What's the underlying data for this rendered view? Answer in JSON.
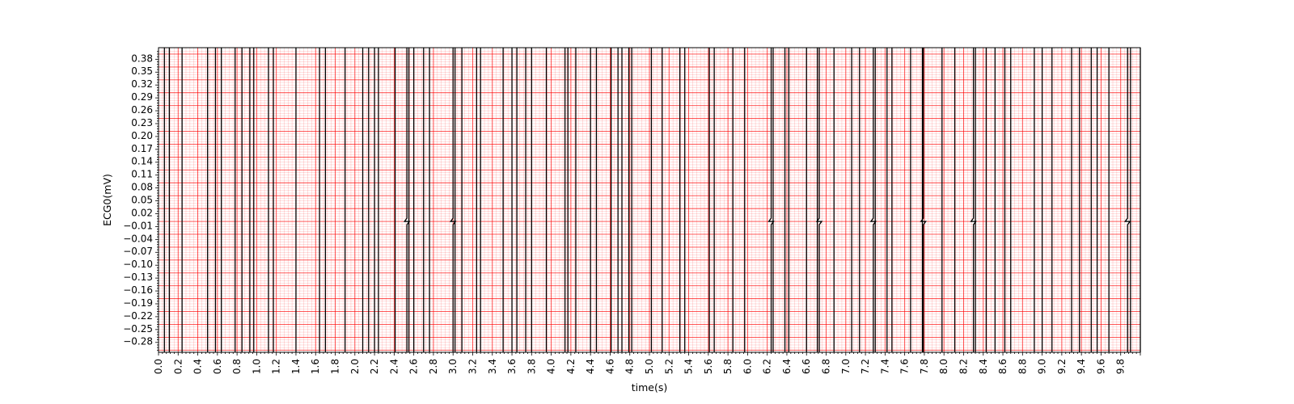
{
  "chart_data": {
    "type": "line",
    "title": "",
    "xlabel": "time(s)",
    "ylabel": "ECG0(mV)",
    "xlim": [
      0,
      10
    ],
    "ylim": [
      -0.305,
      0.405
    ],
    "grid": {
      "major": true,
      "minor": true,
      "color": "#ff0000"
    },
    "line_color": "#000000",
    "x_ticks": [
      "0.0",
      "0.2",
      "0.4",
      "0.6",
      "0.8",
      "1.0",
      "1.2",
      "1.4",
      "1.6",
      "1.8",
      "2.0",
      "2.2",
      "2.4",
      "2.6",
      "2.8",
      "3.0",
      "3.2",
      "3.4",
      "3.6",
      "3.8",
      "4.0",
      "4.2",
      "4.4",
      "4.6",
      "4.8",
      "5.0",
      "5.2",
      "5.4",
      "5.6",
      "5.8",
      "6.0",
      "6.2",
      "6.4",
      "6.6",
      "6.8",
      "7.0",
      "7.2",
      "7.4",
      "7.6",
      "7.8",
      "8.0",
      "8.2",
      "8.4",
      "8.6",
      "8.8",
      "9.0",
      "9.2",
      "9.4",
      "9.6",
      "9.8"
    ],
    "y_ticks": [
      "0.38",
      "0.35",
      "0.32",
      "0.29",
      "0.26",
      "0.23",
      "0.20",
      "0.17",
      "0.14",
      "0.11",
      "0.08",
      "0.05",
      "0.02",
      "−0.01",
      "−0.04",
      "−0.07",
      "−0.10",
      "−0.13",
      "−0.16",
      "−0.19",
      "−0.22",
      "−0.25",
      "−0.28"
    ],
    "transitions": [
      0.06,
      0.11,
      0.24,
      0.5,
      0.58,
      0.64,
      0.78,
      0.85,
      0.93,
      0.97,
      1.12,
      1.17,
      1.4,
      1.64,
      1.7,
      1.9,
      2.08,
      2.14,
      2.2,
      2.24,
      2.41,
      2.53,
      2.55,
      2.6,
      2.7,
      2.76,
      3.0,
      3.02,
      3.09,
      3.24,
      3.28,
      3.51,
      3.6,
      3.65,
      3.74,
      3.8,
      3.95,
      4.14,
      4.17,
      4.25,
      4.4,
      4.46,
      4.61,
      4.68,
      4.72,
      4.79,
      4.82,
      5.02,
      5.13,
      5.31,
      5.36,
      5.61,
      5.66,
      5.85,
      5.97,
      6.24,
      6.26,
      6.38,
      6.42,
      6.6,
      6.71,
      6.73,
      6.88,
      7.06,
      7.14,
      7.28,
      7.3,
      7.42,
      7.47,
      7.66,
      7.78,
      7.79,
      7.98,
      8.11,
      8.3,
      8.32,
      8.43,
      8.52,
      8.62,
      8.68,
      8.92,
      9.0,
      9.1,
      9.3,
      9.38,
      9.5,
      9.56,
      9.68,
      9.87,
      9.9,
      10.0
    ],
    "notches_at": [
      2.53,
      3.0,
      6.24,
      6.73,
      7.28,
      7.79,
      8.3,
      9.87
    ],
    "notch_level": 0.0
  }
}
